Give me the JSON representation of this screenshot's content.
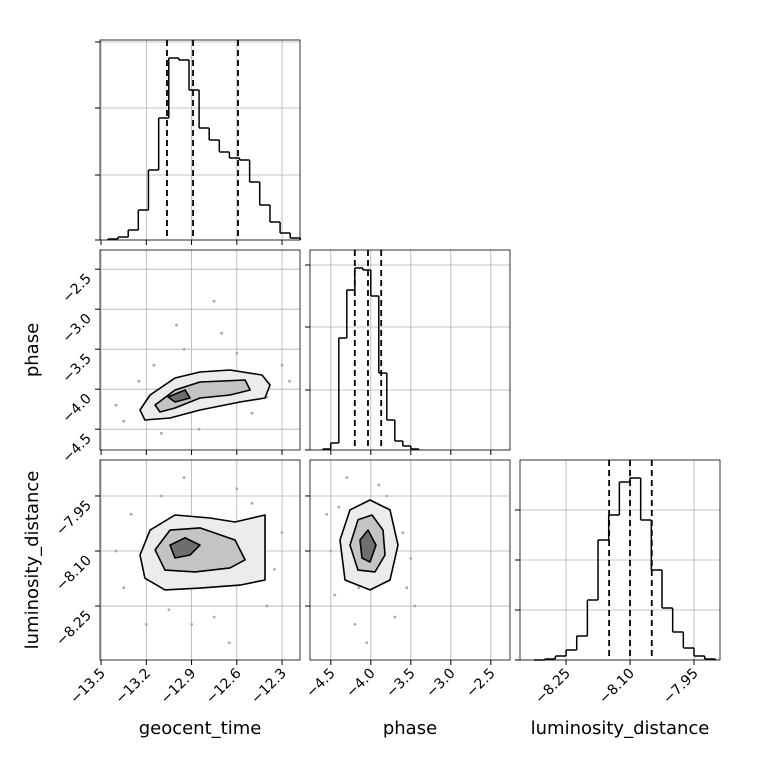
{
  "chart_data": [
    {
      "type": "histogram",
      "color": "#000000",
      "grid": true,
      "xlim": [
        -13.507,
        -12.181
      ],
      "xticks": [
        -13.5,
        -13.2,
        -12.9,
        -12.6,
        -12.3
      ],
      "ylim": [
        0,
        200
      ],
      "yticks": [
        0,
        65,
        132,
        198
      ],
      "bins": [
        -13.454,
        -13.387,
        -13.32,
        -13.253,
        -13.186,
        -13.118,
        -13.051,
        -12.984,
        -12.917,
        -12.85,
        -12.783,
        -12.716,
        -12.649,
        -12.582,
        -12.515,
        -12.448,
        -12.38,
        -12.313,
        -12.246,
        -12.179
      ],
      "values": [
        1,
        3,
        10,
        30,
        70,
        122,
        182,
        180,
        150,
        112,
        100,
        88,
        82,
        80,
        58,
        35,
        18,
        7,
        2
      ],
      "quantiles": [
        -13.063,
        -12.89,
        -12.592
      ]
    },
    {
      "type": "contour",
      "grid": true,
      "color": "#000000",
      "point_color": "#aaaaaa",
      "fill_colors": [
        "#ececec",
        "#c4c4c4",
        "#6e6e6e"
      ],
      "xlim": [
        -13.507,
        -12.181
      ],
      "xticks": [
        -13.5,
        -13.2,
        -12.9,
        -12.6,
        -12.3
      ],
      "ylim": [
        -4.76,
        -2.26
      ],
      "yticks": [
        {
          "value": -4.5,
          "label": "−4.5"
        },
        {
          "value": -4.0,
          "label": "−4.0"
        },
        {
          "value": -3.5,
          "label": "−3.5"
        },
        {
          "value": -3.0,
          "label": "−3.0"
        },
        {
          "value": -2.5,
          "label": "−2.5"
        }
      ],
      "ylabel": "phase",
      "points": {
        "x": [
          -13.35,
          -13.1,
          -12.95,
          -12.7,
          -12.5,
          -12.3,
          -13.25,
          -12.85,
          -12.6,
          -13.0,
          -12.4,
          -13.4,
          -12.75,
          -12.25,
          -13.15
        ],
        "y": [
          -4.4,
          -4.55,
          -3.5,
          -3.3,
          -4.3,
          -3.7,
          -3.9,
          -4.5,
          -3.55,
          -3.2,
          -4.1,
          -4.2,
          -2.9,
          -3.9,
          -3.7
        ]
      },
      "levels": [
        {
          "x": [
            -13.242,
            -13.175,
            -13.01,
            -12.844,
            -12.645,
            -12.433,
            -12.38,
            -12.413,
            -12.579,
            -12.844,
            -13.043,
            -13.209
          ],
          "y": [
            -4.26,
            -4.073,
            -3.86,
            -3.785,
            -3.76,
            -3.823,
            -3.948,
            -4.11,
            -4.16,
            -4.26,
            -4.36,
            -4.385
          ]
        },
        {
          "x": [
            -13.142,
            -13.01,
            -12.844,
            -12.545,
            -12.512,
            -12.645,
            -12.844,
            -13.01,
            -13.109
          ],
          "y": [
            -4.198,
            -4.01,
            -3.91,
            -3.885,
            -4.01,
            -4.073,
            -4.11,
            -4.235,
            -4.285
          ]
        },
        {
          "x": [
            -13.056,
            -12.943,
            -12.91,
            -13.01
          ],
          "y": [
            -4.098,
            -4.01,
            -4.11,
            -4.16
          ]
        }
      ]
    },
    {
      "type": "histogram",
      "color": "#000000",
      "grid": true,
      "xlim": [
        -4.76,
        -2.26
      ],
      "xticks": [
        -4.5,
        -4.0,
        -3.5,
        -3.0,
        -2.5
      ],
      "ylim": [
        0,
        200
      ],
      "yticks": [
        0,
        60,
        123,
        185
      ],
      "bins": [
        -4.6,
        -4.5,
        -4.4,
        -4.3,
        -4.2,
        -4.1,
        -4.0,
        -3.9,
        -3.8,
        -3.7,
        -3.6,
        -3.5,
        -3.4
      ],
      "values": [
        1,
        7,
        112,
        160,
        182,
        180,
        154,
        77,
        30,
        9,
        4,
        1
      ],
      "quantiles": [
        -4.2,
        -4.035,
        -3.87
      ]
    },
    {
      "type": "contour",
      "grid": true,
      "color": "#000000",
      "point_color": "#aaaaaa",
      "fill_colors": [
        "#ececec",
        "#c4c4c4",
        "#6e6e6e"
      ],
      "xlim": [
        -13.507,
        -12.181
      ],
      "xticks": [
        {
          "value": -13.5,
          "label": "−13.5"
        },
        {
          "value": -13.2,
          "label": "−13.2"
        },
        {
          "value": -12.9,
          "label": "−12.9"
        },
        {
          "value": -12.6,
          "label": "−12.6"
        },
        {
          "value": -12.3,
          "label": "−12.3"
        }
      ],
      "ylim": [
        -8.397,
        -7.852
      ],
      "yticks": [
        {
          "value": -8.25,
          "label": "−8.25"
        },
        {
          "value": -8.1,
          "label": "−8.10"
        },
        {
          "value": -7.95,
          "label": "−7.95"
        }
      ],
      "xlabel": "geocent_time",
      "ylabel": "luminosity_distance",
      "points": {
        "x": [
          -13.35,
          -13.1,
          -12.9,
          -12.6,
          -12.4,
          -12.3,
          -13.3,
          -12.75,
          -12.5,
          -13.2,
          -12.35,
          -13.4,
          -12.95,
          -12.65,
          -13.05
        ],
        "y": [
          -8.2,
          -7.95,
          -8.3,
          -7.93,
          -8.25,
          -8.05,
          -8.0,
          -8.28,
          -7.97,
          -8.3,
          -8.15,
          -8.1,
          -7.9,
          -8.35,
          -8.26
        ]
      },
      "levels": [
        {
          "x": [
            -13.242,
            -13.175,
            -13.01,
            -12.778,
            -12.612,
            -12.413,
            -12.413,
            -12.579,
            -12.844,
            -13.076,
            -13.209
          ],
          "y": [
            -8.111,
            -8.043,
            -8.002,
            -8.01,
            -8.021,
            -8.002,
            -8.179,
            -8.193,
            -8.201,
            -8.206,
            -8.174
          ]
        },
        {
          "x": [
            -13.142,
            -13.043,
            -12.844,
            -12.612,
            -12.545,
            -12.645,
            -12.877,
            -13.076
          ],
          "y": [
            -8.097,
            -8.043,
            -8.037,
            -8.07,
            -8.124,
            -8.146,
            -8.157,
            -8.152
          ]
        },
        {
          "x": [
            -13.043,
            -12.943,
            -12.844,
            -12.91,
            -13.01
          ],
          "y": [
            -8.084,
            -8.064,
            -8.084,
            -8.111,
            -8.119
          ]
        }
      ]
    },
    {
      "type": "contour",
      "grid": true,
      "color": "#000000",
      "point_color": "#aaaaaa",
      "fill_colors": [
        "#ececec",
        "#c4c4c4",
        "#6e6e6e"
      ],
      "xlim": [
        -4.76,
        -2.26
      ],
      "xticks": [
        {
          "value": -4.5,
          "label": "−4.5"
        },
        {
          "value": -4.0,
          "label": "−4.0"
        },
        {
          "value": -3.5,
          "label": "−3.5"
        },
        {
          "value": -3.0,
          "label": "−3.0"
        },
        {
          "value": -2.5,
          "label": "−2.5"
        }
      ],
      "ylim": [
        -8.397,
        -7.852
      ],
      "yticks": [
        -8.25,
        -8.1,
        -7.95
      ],
      "xlabel": "phase",
      "points": {
        "x": [
          -4.5,
          -4.4,
          -3.6,
          -3.55,
          -4.2,
          -3.9,
          -4.45,
          -3.7,
          -4.05,
          -3.5,
          -4.3,
          -3.8,
          -4.55,
          -3.45,
          -4.15
        ],
        "y": [
          -8.1,
          -7.98,
          -8.05,
          -8.2,
          -8.3,
          -7.92,
          -8.22,
          -8.28,
          -8.35,
          -8.12,
          -7.9,
          -7.95,
          -8.0,
          -8.25,
          -8.2
        ]
      },
      "levels": [
        {
          "x": [
            -4.385,
            -4.26,
            -4.01,
            -3.76,
            -3.66,
            -3.76,
            -4.01,
            -4.323
          ],
          "y": [
            -8.07,
            -7.988,
            -7.961,
            -7.988,
            -8.084,
            -8.179,
            -8.206,
            -8.179
          ]
        },
        {
          "x": [
            -4.26,
            -4.16,
            -3.985,
            -3.848,
            -3.823,
            -3.948,
            -4.16
          ],
          "y": [
            -8.084,
            -8.015,
            -8.002,
            -8.043,
            -8.111,
            -8.157,
            -8.152
          ]
        },
        {
          "x": [
            -4.135,
            -4.035,
            -3.935,
            -4.01,
            -4.11
          ],
          "y": [
            -8.07,
            -8.043,
            -8.084,
            -8.13,
            -8.119
          ]
        }
      ]
    },
    {
      "type": "histogram",
      "color": "#000000",
      "grid": true,
      "xlim": [
        -8.358,
        -7.889
      ],
      "xticks": [
        {
          "value": -8.25,
          "label": "−8.25"
        },
        {
          "value": -8.1,
          "label": "−8.10"
        },
        {
          "value": -7.95,
          "label": "−7.95"
        }
      ],
      "ylim": [
        0,
        200
      ],
      "yticks": [
        0,
        50,
        100,
        150
      ],
      "xlabel": "luminosity_distance",
      "bins": [
        -8.325,
        -8.3,
        -8.275,
        -8.25,
        -8.225,
        -8.2,
        -8.175,
        -8.15,
        -8.125,
        -8.1,
        -8.075,
        -8.05,
        -8.025,
        -8.0,
        -7.975,
        -7.95,
        -7.925,
        -7.9
      ],
      "values": [
        0,
        1,
        4,
        10,
        24,
        60,
        120,
        145,
        178,
        182,
        140,
        90,
        52,
        28,
        12,
        4,
        1
      ],
      "quantiles": [
        -8.149,
        -8.1,
        -8.049
      ]
    }
  ]
}
